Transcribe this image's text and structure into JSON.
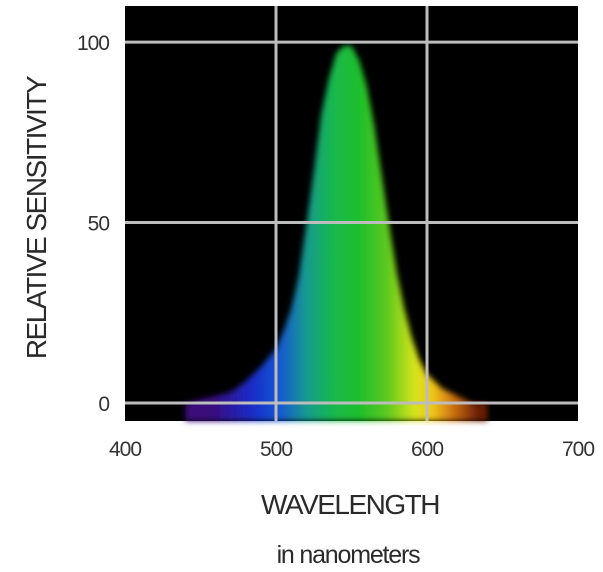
{
  "chart_data": {
    "type": "area",
    "xlabel": "WAVELENGTH",
    "xlabel_sub": "in nanometers",
    "ylabel": "RELATIVE SENSITIVITY",
    "x_ticks": [
      "400",
      "500",
      "600",
      "700"
    ],
    "y_ticks": [
      "0",
      "50",
      "100"
    ],
    "xlim": [
      400,
      700
    ],
    "ylim": [
      -5,
      110
    ],
    "grid": true,
    "background": "#000000",
    "grid_color": "#bdbdbd",
    "series": [
      {
        "x": [
          440,
          450,
          460,
          470,
          480,
          490,
          500,
          505,
          510,
          515,
          520,
          525,
          530,
          535,
          540,
          545,
          550,
          555,
          560,
          565,
          570,
          575,
          580,
          585,
          590,
          595,
          600,
          610,
          620,
          630,
          640
        ],
        "y": [
          0,
          1,
          2,
          3,
          6,
          10,
          15,
          20,
          26,
          35,
          49,
          64,
          80,
          90,
          97,
          99,
          99,
          95,
          88,
          77,
          63,
          49,
          36,
          26,
          18,
          12,
          8,
          4,
          2,
          0,
          0
        ]
      }
    ]
  }
}
